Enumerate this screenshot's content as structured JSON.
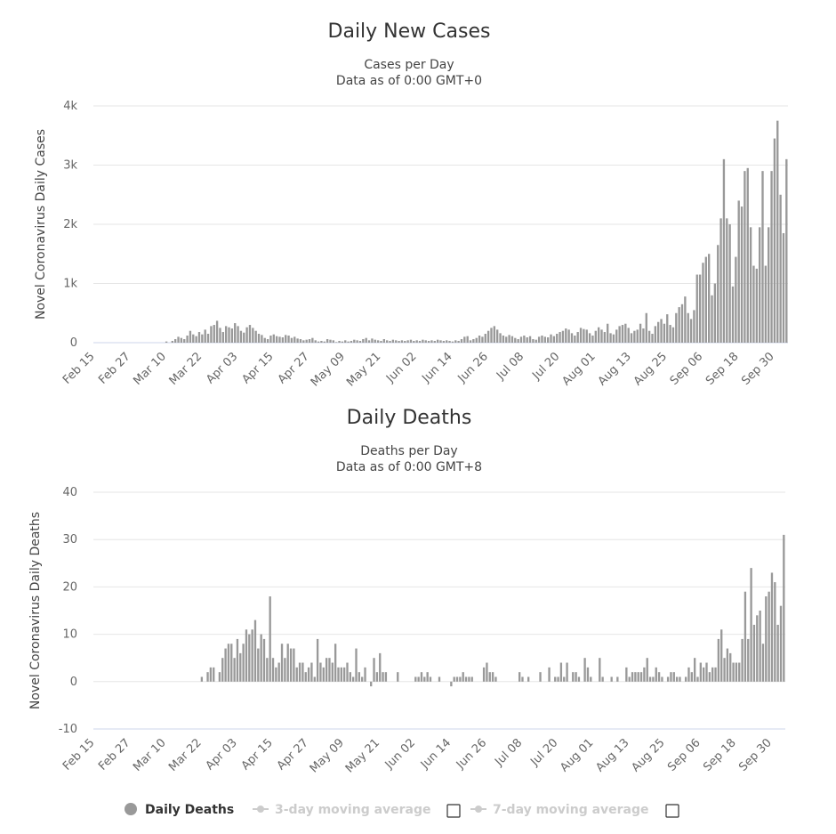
{
  "chart_data": [
    {
      "type": "bar",
      "title": "Daily New Cases",
      "subtitle": [
        "Cases per Day",
        "Data as of 0:00 GMT+0"
      ],
      "y_label": "Novel Coronavirus Daily Cases",
      "color": "#999999",
      "grid": true,
      "ylim": [
        0,
        4000
      ],
      "yticks": [
        0,
        {
          "value": 1000,
          "label": "1k"
        },
        {
          "value": 2000,
          "label": "2k"
        },
        {
          "value": 3000,
          "label": "3k"
        },
        {
          "value": 4000,
          "label": "4k"
        }
      ],
      "categories": [
        "Feb 15",
        null,
        null,
        null,
        null,
        null,
        null,
        null,
        null,
        null,
        null,
        null,
        "Feb 27",
        null,
        null,
        null,
        null,
        null,
        null,
        null,
        null,
        null,
        null,
        null,
        "Mar 10",
        null,
        null,
        null,
        null,
        null,
        null,
        null,
        null,
        null,
        null,
        null,
        "Mar 22",
        null,
        null,
        null,
        null,
        null,
        null,
        null,
        null,
        null,
        null,
        null,
        "Apr 03",
        null,
        null,
        null,
        null,
        null,
        null,
        null,
        null,
        null,
        null,
        null,
        "Apr 15",
        null,
        null,
        null,
        null,
        null,
        null,
        null,
        null,
        null,
        null,
        null,
        "Apr 27",
        null,
        null,
        null,
        null,
        null,
        null,
        null,
        null,
        null,
        null,
        null,
        "May 09",
        null,
        null,
        null,
        null,
        null,
        null,
        null,
        null,
        null,
        null,
        null,
        "May 21",
        null,
        null,
        null,
        null,
        null,
        null,
        null,
        null,
        null,
        null,
        null,
        "Jun 02",
        null,
        null,
        null,
        null,
        null,
        null,
        null,
        null,
        null,
        null,
        null,
        "Jun 14",
        null,
        null,
        null,
        null,
        null,
        null,
        null,
        null,
        null,
        null,
        null,
        "Jun 26",
        null,
        null,
        null,
        null,
        null,
        null,
        null,
        null,
        null,
        null,
        null,
        "Jul 08",
        null,
        null,
        null,
        null,
        null,
        null,
        null,
        null,
        null,
        null,
        null,
        "Jul 20",
        null,
        null,
        null,
        null,
        null,
        null,
        null,
        null,
        null,
        null,
        null,
        "Aug 01",
        null,
        null,
        null,
        null,
        null,
        null,
        null,
        null,
        null,
        null,
        null,
        "Aug 13",
        null,
        null,
        null,
        null,
        null,
        null,
        null,
        null,
        null,
        null,
        null,
        "Aug 25",
        null,
        null,
        null,
        null,
        null,
        null,
        null,
        null,
        null,
        null,
        null,
        "Sep 06",
        null,
        null,
        null,
        null,
        null,
        null,
        null,
        null,
        null,
        null,
        null,
        "Sep 18",
        null,
        null,
        null,
        null,
        null,
        null,
        null,
        null,
        null,
        null,
        null,
        "Sep 30",
        null,
        null,
        null,
        null
      ],
      "values": [
        0,
        0,
        0,
        0,
        0,
        0,
        0,
        0,
        0,
        0,
        0,
        0,
        0,
        0,
        0,
        0,
        0,
        0,
        0,
        0,
        0,
        0,
        0,
        0,
        20,
        0,
        30,
        60,
        100,
        80,
        60,
        120,
        200,
        140,
        110,
        180,
        140,
        220,
        150,
        280,
        300,
        370,
        250,
        180,
        280,
        260,
        240,
        330,
        280,
        200,
        170,
        260,
        300,
        250,
        200,
        150,
        130,
        80,
        60,
        120,
        140,
        110,
        100,
        90,
        130,
        120,
        80,
        100,
        70,
        60,
        40,
        50,
        60,
        80,
        40,
        20,
        30,
        20,
        60,
        50,
        40,
        10,
        30,
        20,
        40,
        20,
        30,
        50,
        40,
        30,
        60,
        80,
        40,
        70,
        50,
        40,
        30,
        60,
        40,
        30,
        50,
        40,
        30,
        40,
        30,
        40,
        50,
        30,
        40,
        30,
        50,
        40,
        30,
        40,
        30,
        50,
        40,
        30,
        40,
        30,
        20,
        40,
        30,
        60,
        100,
        110,
        40,
        60,
        80,
        120,
        100,
        150,
        200,
        250,
        280,
        220,
        160,
        120,
        100,
        130,
        110,
        80,
        60,
        100,
        120,
        90,
        110,
        60,
        50,
        100,
        120,
        100,
        90,
        140,
        110,
        150,
        180,
        200,
        240,
        220,
        160,
        120,
        180,
        250,
        230,
        220,
        160,
        120,
        200,
        260,
        220,
        180,
        320,
        160,
        140,
        220,
        280,
        300,
        320,
        250,
        160,
        200,
        220,
        320,
        240,
        500,
        200,
        150,
        280,
        350,
        400,
        320,
        480,
        300,
        260,
        500,
        600,
        650,
        780,
        500,
        400,
        550,
        1150,
        1150,
        1350,
        1450,
        1500,
        800,
        1000,
        1650,
        2100,
        3100,
        2100,
        2000,
        950,
        1450,
        2400,
        2300,
        2900,
        2950,
        1950,
        1300,
        1250,
        1950,
        2900,
        1300,
        1950,
        2900,
        3450,
        3750,
        2500,
        1850,
        3100
      ]
    },
    {
      "type": "bar",
      "title": "Daily Deaths",
      "subtitle": [
        "Deaths per Day",
        "Data as of 0:00 GMT+8"
      ],
      "y_label": "Novel Coronavirus Daily Deaths",
      "color": "#999999",
      "grid": true,
      "ylim": [
        -10,
        40
      ],
      "yticks": [
        -10,
        0,
        10,
        20,
        30,
        40
      ],
      "legend": [
        "Daily Deaths",
        "3-day moving average",
        "7-day moving average"
      ],
      "categories": [
        "Feb 15",
        null,
        null,
        null,
        null,
        null,
        null,
        null,
        null,
        null,
        null,
        null,
        "Feb 27",
        null,
        null,
        null,
        null,
        null,
        null,
        null,
        null,
        null,
        null,
        null,
        "Mar 10",
        null,
        null,
        null,
        null,
        null,
        null,
        null,
        null,
        null,
        null,
        null,
        "Mar 22",
        null,
        null,
        null,
        null,
        null,
        null,
        null,
        null,
        null,
        null,
        null,
        "Apr 03",
        null,
        null,
        null,
        null,
        null,
        null,
        null,
        null,
        null,
        null,
        null,
        "Apr 15",
        null,
        null,
        null,
        null,
        null,
        null,
        null,
        null,
        null,
        null,
        null,
        "Apr 27",
        null,
        null,
        null,
        null,
        null,
        null,
        null,
        null,
        null,
        null,
        null,
        "May 09",
        null,
        null,
        null,
        null,
        null,
        null,
        null,
        null,
        null,
        null,
        null,
        "May 21",
        null,
        null,
        null,
        null,
        null,
        null,
        null,
        null,
        null,
        null,
        null,
        "Jun 02",
        null,
        null,
        null,
        null,
        null,
        null,
        null,
        null,
        null,
        null,
        null,
        "Jun 14",
        null,
        null,
        null,
        null,
        null,
        null,
        null,
        null,
        null,
        null,
        null,
        "Jun 26",
        null,
        null,
        null,
        null,
        null,
        null,
        null,
        null,
        null,
        null,
        null,
        "Jul 08",
        null,
        null,
        null,
        null,
        null,
        null,
        null,
        null,
        null,
        null,
        null,
        "Jul 20",
        null,
        null,
        null,
        null,
        null,
        null,
        null,
        null,
        null,
        null,
        null,
        "Aug 01",
        null,
        null,
        null,
        null,
        null,
        null,
        null,
        null,
        null,
        null,
        null,
        "Aug 13",
        null,
        null,
        null,
        null,
        null,
        null,
        null,
        null,
        null,
        null,
        null,
        "Aug 25",
        null,
        null,
        null,
        null,
        null,
        null,
        null,
        null,
        null,
        null,
        null,
        "Sep 06",
        null,
        null,
        null,
        null,
        null,
        null,
        null,
        null,
        null,
        null,
        null,
        "Sep 18",
        null,
        null,
        null,
        null,
        null,
        null,
        null,
        null,
        null,
        null,
        null,
        "Sep 30",
        null,
        null,
        null,
        null
      ],
      "values": [
        0,
        0,
        0,
        0,
        0,
        0,
        0,
        0,
        0,
        0,
        0,
        0,
        0,
        0,
        0,
        0,
        0,
        0,
        0,
        0,
        0,
        0,
        0,
        0,
        0,
        0,
        0,
        0,
        0,
        0,
        0,
        0,
        0,
        0,
        0,
        0,
        1,
        0,
        2,
        3,
        3,
        0,
        2,
        5,
        7,
        8,
        8,
        5,
        9,
        6,
        8,
        11,
        10,
        11,
        13,
        7,
        10,
        9,
        5,
        18,
        5,
        3,
        4,
        8,
        5,
        8,
        7,
        7,
        3,
        4,
        4,
        2,
        3,
        4,
        1,
        9,
        4,
        3,
        5,
        5,
        4,
        8,
        3,
        3,
        3,
        4,
        2,
        1,
        7,
        2,
        1,
        3,
        0,
        -1,
        5,
        2,
        6,
        2,
        2,
        0,
        0,
        0,
        2,
        0,
        0,
        0,
        0,
        0,
        1,
        1,
        2,
        1,
        2,
        1,
        0,
        0,
        1,
        0,
        0,
        0,
        -1,
        1,
        1,
        1,
        2,
        1,
        1,
        1,
        0,
        0,
        0,
        3,
        4,
        2,
        2,
        1,
        0,
        0,
        0,
        0,
        0,
        0,
        0,
        2,
        1,
        0,
        1,
        0,
        0,
        0,
        2,
        0,
        0,
        3,
        0,
        1,
        1,
        4,
        1,
        4,
        0,
        2,
        2,
        1,
        0,
        5,
        3,
        1,
        0,
        0,
        5,
        1,
        0,
        0,
        1,
        0,
        1,
        0,
        0,
        3,
        1,
        2,
        2,
        2,
        2,
        3,
        5,
        1,
        1,
        3,
        2,
        1,
        0,
        1,
        2,
        2,
        1,
        1,
        0,
        1,
        3,
        2,
        5,
        1,
        4,
        3,
        4,
        2,
        3,
        3,
        9,
        11,
        5,
        7,
        6,
        4,
        4,
        4,
        9,
        19,
        9,
        24,
        12,
        14,
        15,
        8,
        18,
        19,
        23,
        21,
        12,
        16,
        31
      ]
    }
  ]
}
